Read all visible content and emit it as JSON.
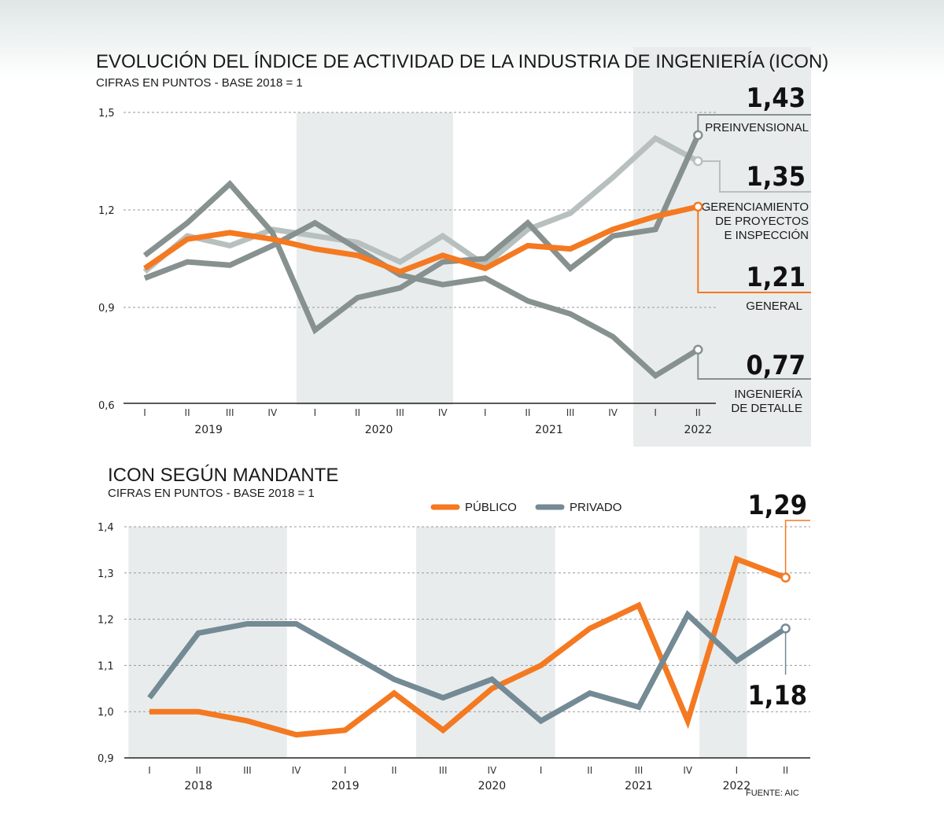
{
  "chart_data": [
    {
      "type": "line",
      "title": "EVOLUCIÓN DEL ÍNDICE DE ACTIVIDAD DE LA INDUSTRIA DE INGENIERÍA (ICON)",
      "subtitle": "CIFRAS EN PUNTOS - BASE 2018 = 1",
      "xlabel": "",
      "ylabel": "",
      "ylim": [
        0.6,
        1.5
      ],
      "yticks": [
        "1,5",
        "1,2",
        "0,9",
        "0,6"
      ],
      "ytick_values": [
        1.5,
        1.2,
        0.9,
        0.6
      ],
      "grid": true,
      "categories": [
        "I",
        "II",
        "III",
        "IV",
        "I",
        "II",
        "III",
        "IV",
        "I",
        "II",
        "III",
        "IV",
        "I",
        "II"
      ],
      "years": [
        {
          "label": "2019",
          "center_index": 1.5
        },
        {
          "label": "2020",
          "center_index": 5.5
        },
        {
          "label": "2021",
          "center_index": 9.5
        },
        {
          "label": "2022",
          "center_index": 13
        }
      ],
      "shaded_ranges": [
        [
          3.6,
          7.3
        ],
        [
          11.5,
          15.0
        ]
      ],
      "series": [
        {
          "name": "GERENCIAMIENTO DE PROYECTOS E INSPECCIÓN",
          "color": "#b8c0bf",
          "end_label": "1,35",
          "values": [
            1.01,
            1.12,
            1.09,
            1.14,
            1.12,
            1.1,
            1.04,
            1.12,
            1.03,
            1.14,
            1.19,
            1.3,
            1.42,
            1.35
          ]
        },
        {
          "name": "INGENIERÍA DE DETALLE",
          "color": "#87918f",
          "end_label": "0,77",
          "values": [
            0.99,
            1.04,
            1.03,
            1.09,
            1.16,
            1.08,
            1.0,
            0.97,
            0.99,
            0.92,
            0.88,
            0.81,
            0.69,
            0.77
          ]
        },
        {
          "name": "PREINVENSIONAL",
          "color": "#87918f",
          "end_label": "1,43",
          "values": [
            1.06,
            1.16,
            1.28,
            1.13,
            0.83,
            0.93,
            0.96,
            1.04,
            1.05,
            1.16,
            1.02,
            1.12,
            1.14,
            1.43
          ]
        },
        {
          "name": "GENERAL",
          "color": "#f47920",
          "end_label": "1,21",
          "values": [
            1.02,
            1.11,
            1.13,
            1.11,
            1.08,
            1.06,
            1.01,
            1.06,
            1.02,
            1.09,
            1.08,
            1.14,
            1.18,
            1.21
          ]
        }
      ],
      "callouts": [
        {
          "value": "1,43",
          "label": [
            "PREINVENSIONAL"
          ]
        },
        {
          "value": "1,35",
          "label": [
            "GERENCIAMIENTO",
            "DE PROYECTOS",
            "E INSPECCIÓN"
          ]
        },
        {
          "value": "1,21",
          "label": [
            "GENERAL"
          ]
        },
        {
          "value": "0,77",
          "label": [
            "INGENIERÍA",
            "DE DETALLE"
          ]
        }
      ]
    },
    {
      "type": "line",
      "title": "ICON SEGÚN MANDANTE",
      "subtitle": "CIFRAS EN PUNTOS - BASE 2018 = 1",
      "xlabel": "",
      "ylabel": "",
      "ylim": [
        0.9,
        1.4
      ],
      "yticks": [
        "1,4",
        "1,3",
        "1,2",
        "1,1",
        "1,0",
        "0,9"
      ],
      "ytick_values": [
        1.4,
        1.3,
        1.2,
        1.1,
        1.0,
        0.9
      ],
      "grid": true,
      "legend_position": "top-center",
      "categories": [
        "I",
        "II",
        "III",
        "IV",
        "I",
        "II",
        "III",
        "IV",
        "I",
        "II",
        "III",
        "IV",
        "I",
        "II"
      ],
      "years": [
        {
          "label": "2018",
          "center_index": 1
        },
        {
          "label": "2019",
          "center_index": 4
        },
        {
          "label": "2020",
          "center_index": 7
        },
        {
          "label": "2021",
          "center_index": 10
        },
        {
          "label": "2022",
          "center_index": 12
        }
      ],
      "shaded_ranges": [
        [
          -0.43,
          2.81
        ],
        [
          5.45,
          8.29
        ],
        [
          11.24,
          12.21
        ]
      ],
      "series": [
        {
          "name": "PÚBLICO",
          "color": "#f47920",
          "end_label": "1,29",
          "values": [
            1.0,
            1.0,
            0.98,
            0.95,
            0.96,
            1.04,
            0.96,
            1.05,
            1.1,
            1.18,
            1.23,
            0.98,
            1.33,
            1.29
          ]
        },
        {
          "name": "PRIVADO",
          "color": "#748a94",
          "end_label": "1,18",
          "values": [
            1.03,
            1.17,
            1.19,
            1.19,
            1.13,
            1.07,
            1.03,
            1.07,
            0.98,
            1.04,
            1.01,
            1.21,
            1.11,
            1.18
          ]
        }
      ],
      "source": "FUENTE: AIC"
    }
  ]
}
